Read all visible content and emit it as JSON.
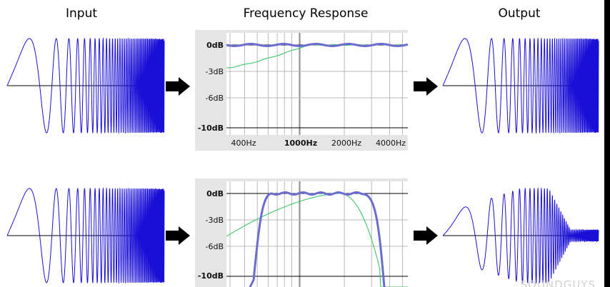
{
  "headers": {
    "input": "Input",
    "frequency_response": "Frequency Response",
    "output": "Output"
  },
  "colors": {
    "wave": "#1a0fd6",
    "response_main": "#6b6bd0",
    "response_secondary": "#29c45a",
    "panel_bg": "#e5e5e5",
    "grid": "#b8b8b8"
  },
  "watermark": "SOUNDGUYS",
  "rows": [
    {
      "response": {
        "y_ticks": [
          "0dB",
          "-3dB",
          "-6dB",
          "-10dB"
        ],
        "x_ticks": [
          {
            "label": "400Hz",
            "bold": false
          },
          {
            "label": "1000Hz",
            "bold": true
          },
          {
            "label": "2000Hz",
            "bold": false
          },
          {
            "label": "4000Hz",
            "bold": false
          }
        ],
        "filter": "flat"
      },
      "output": "full"
    },
    {
      "response": {
        "y_ticks": [
          "0dB",
          "-3dB",
          "-6dB",
          "-10dB"
        ],
        "x_ticks": [],
        "filter": "bandpass"
      },
      "output": "bandpass"
    }
  ]
}
